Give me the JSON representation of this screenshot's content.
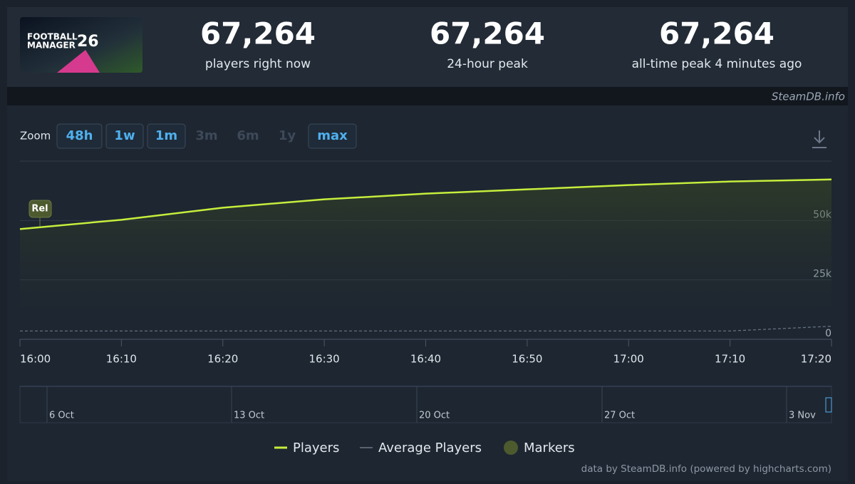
{
  "header": {
    "logo_text": [
      "FOOTBALL",
      "MANAGER",
      "26"
    ],
    "stats": [
      {
        "value": "67,264",
        "label": "players right now"
      },
      {
        "value": "67,264",
        "label": "24-hour peak"
      },
      {
        "value": "67,264",
        "label": "all-time peak 4 minutes ago"
      }
    ],
    "source": "SteamDB.info"
  },
  "zoom": {
    "label": "Zoom",
    "options": [
      {
        "label": "48h",
        "enabled": true
      },
      {
        "label": "1w",
        "enabled": true
      },
      {
        "label": "1m",
        "enabled": true
      },
      {
        "label": "3m",
        "enabled": false
      },
      {
        "label": "6m",
        "enabled": false
      },
      {
        "label": "1y",
        "enabled": false
      },
      {
        "label": "max",
        "enabled": true
      }
    ]
  },
  "chart_data": {
    "type": "line",
    "x": [
      "16:00",
      "16:10",
      "16:20",
      "16:30",
      "16:40",
      "16:50",
      "17:00",
      "17:10",
      "17:20"
    ],
    "series": [
      {
        "name": "Players",
        "color": "#c5ee3c",
        "values": [
          46400,
          50300,
          55400,
          58900,
          61300,
          63100,
          64900,
          66400,
          67264
        ]
      },
      {
        "name": "Average Players",
        "color": "#6b7686",
        "values": [
          3500,
          3500,
          3500,
          3500,
          3500,
          3500,
          3500,
          3500,
          5500
        ]
      }
    ],
    "ylim": [
      0,
      75000
    ],
    "yticks": [
      0,
      {
        "value": 25000,
        "label": "25k"
      },
      {
        "value": 50000,
        "label": "50k"
      }
    ],
    "grid": true,
    "markers": [
      {
        "label": "Rel",
        "color": "#4d5a2e"
      }
    ],
    "marker_legend": "Markers",
    "navigator_labels": [
      "6 Oct",
      "13 Oct",
      "20 Oct",
      "27 Oct",
      "3 Nov"
    ],
    "credit": "data by SteamDB.info (powered by highcharts.com)"
  }
}
